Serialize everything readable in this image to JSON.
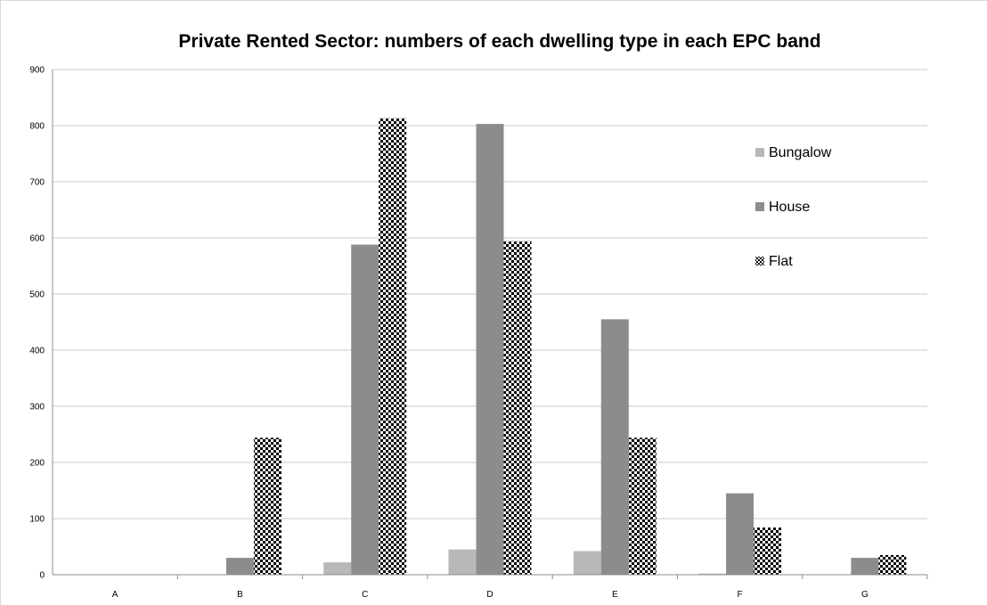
{
  "chart_data": {
    "type": "bar",
    "title": "Private Rented Sector: numbers of each dwelling type in each EPC band",
    "xlabel": "",
    "ylabel": "",
    "categories": [
      "A",
      "B",
      "C",
      "D",
      "E",
      "F",
      "G"
    ],
    "ylim": [
      0,
      900
    ],
    "yticks": [
      "0",
      "100",
      "200",
      "300",
      "400",
      "500",
      "600",
      "700",
      "800",
      "900"
    ],
    "grid": true,
    "legend_position": "right",
    "series": [
      {
        "name": "Bungalow",
        "color": "#b8b8b8",
        "pattern": "solid",
        "values": [
          0,
          0,
          22,
          45,
          42,
          2,
          0
        ]
      },
      {
        "name": "House",
        "color": "#8c8c8c",
        "pattern": "solid",
        "values": [
          0,
          30,
          588,
          803,
          455,
          145,
          30
        ]
      },
      {
        "name": "Flat",
        "color": "#000000",
        "pattern": "checkerboard",
        "values": [
          0,
          244,
          813,
          594,
          244,
          84,
          35
        ]
      }
    ]
  }
}
